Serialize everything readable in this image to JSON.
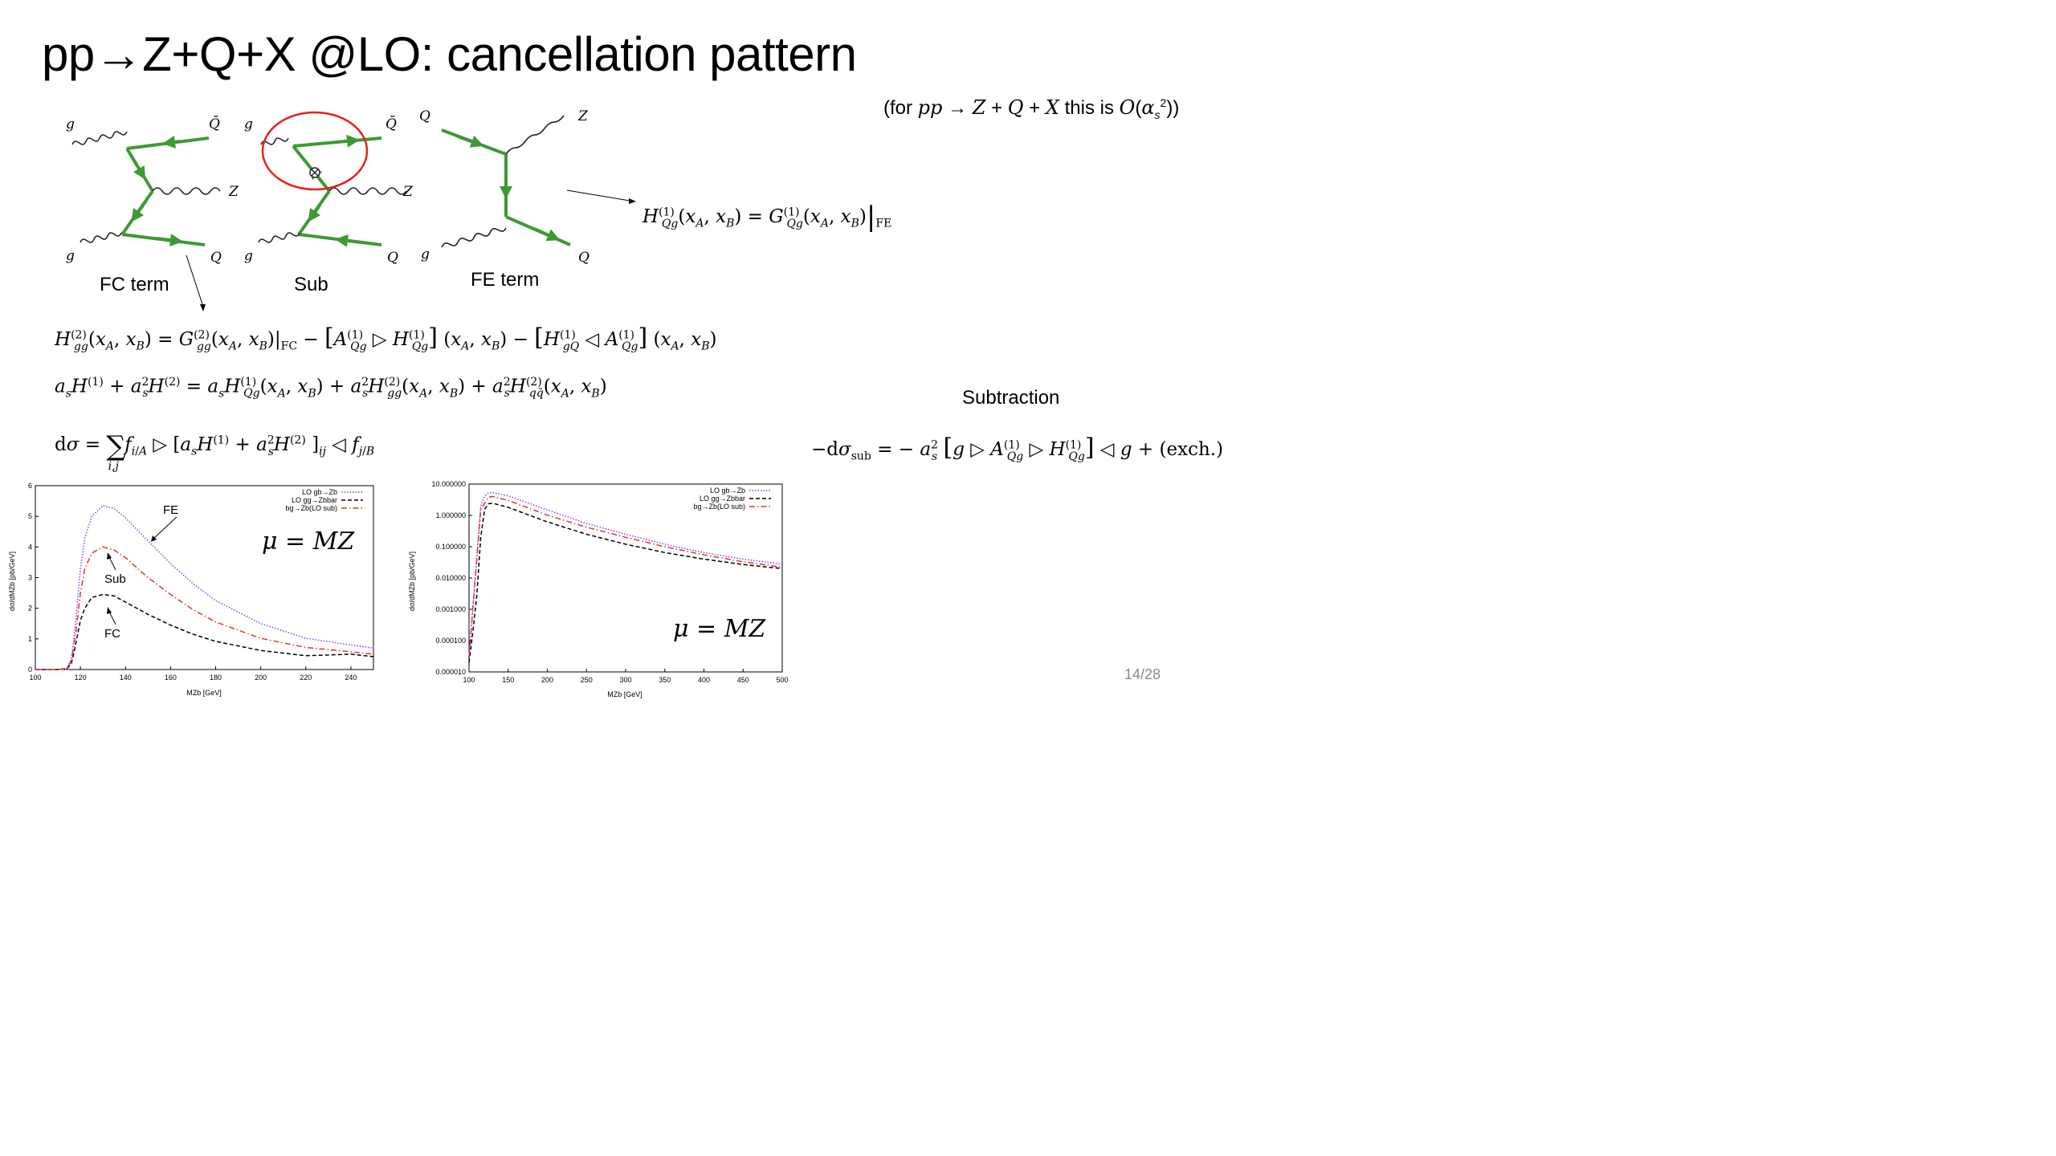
{
  "slide": {
    "title": "pp→Z+Q+X @LO: cancellation pattern",
    "note": "(for pp → Z + Q + X this is O(αs²))",
    "page_number": "14/28",
    "subtraction_label": "Subtraction"
  },
  "diagrams": {
    "fc": {
      "label": "FC term",
      "gluon_top": "g",
      "gluon_bottom": "g",
      "antiquark": "Q̄",
      "boson": "Z",
      "quark": "Q"
    },
    "sub": {
      "label": "Sub",
      "gluon_top": "g",
      "gluon_bottom": "g",
      "antiquark": "Q̄",
      "boson": "Z",
      "quark": "Q"
    },
    "fe": {
      "label": "FE term",
      "quark_in": "Q",
      "gluon_in": "g",
      "boson": "Z",
      "quark_out": "Q"
    }
  },
  "equations": {
    "fe_relation": "H⁽¹⁾Qg(xA, xB) = G⁽¹⁾Qg(xA, xB)|FE",
    "h2": "H⁽²⁾gg(xA, xB) = G⁽²⁾gg(xA, xB)|FC − [A⁽¹⁾Qg ▷ H⁽¹⁾Qg](xA, xB) − [H⁽¹⁾gQ ◁ A⁽¹⁾Qg](xA, xB)",
    "sum": "asH⁽¹⁾ + as²H⁽²⁾ = asH⁽¹⁾Qg(xA, xB) + as²H⁽²⁾gg(xA, xB) + as²H⁽²⁾qq̄(xA, xB)",
    "dsigma": "dσ = Σi,j fi/A ▷ [asH⁽¹⁾ + as²H⁽²⁾]ij ◁ fj/B",
    "subtraction": "−dσsub = − as² [g ▷ A⁽¹⁾Qg ▷ H⁽¹⁾Qg] ◁ g + (exch.)"
  },
  "chart_data": [
    {
      "type": "line",
      "xlabel": "MZb [GeV]",
      "ylabel": "dσ/dMZb [pb/GeV]",
      "xlim": [
        100,
        250
      ],
      "ylim": [
        0,
        6
      ],
      "xticks": [
        "100",
        "120",
        "140",
        "160",
        "180",
        "200",
        "220",
        "240"
      ],
      "yticks": [
        "0",
        "1",
        "2",
        "3",
        "4",
        "5",
        "6"
      ],
      "scale_label": "μ = MZ",
      "annotations": [
        "FE",
        "Sub",
        "FC"
      ],
      "legend_position": "top-right",
      "series": [
        {
          "name": "LO gb→Zb",
          "color": "#8a3dff",
          "style": "dotted",
          "x": [
            100,
            110,
            114,
            116,
            118,
            120,
            122,
            125,
            130,
            135,
            140,
            150,
            160,
            170,
            180,
            200,
            220,
            240,
            250
          ],
          "y": [
            0,
            0,
            0.05,
            0.35,
            1.6,
            3.3,
            4.3,
            5.0,
            5.35,
            5.25,
            4.95,
            4.2,
            3.45,
            2.8,
            2.25,
            1.5,
            1.02,
            0.8,
            0.7
          ]
        },
        {
          "name": "LO gg→Zbbar",
          "color": "#000000",
          "style": "dashed",
          "x": [
            100,
            110,
            114,
            116,
            118,
            120,
            122,
            125,
            130,
            135,
            140,
            150,
            160,
            170,
            180,
            200,
            220,
            240,
            250
          ],
          "y": [
            0,
            0,
            0.02,
            0.2,
            0.85,
            1.6,
            2.0,
            2.35,
            2.45,
            2.4,
            2.2,
            1.8,
            1.45,
            1.15,
            0.92,
            0.62,
            0.45,
            0.5,
            0.42
          ]
        },
        {
          "name": "bg→Zb(LO sub)",
          "color": "#e8302a",
          "style": "dashdot",
          "x": [
            100,
            110,
            114,
            116,
            118,
            120,
            122,
            125,
            130,
            135,
            140,
            150,
            160,
            170,
            180,
            200,
            220,
            240,
            250
          ],
          "y": [
            0,
            0,
            0.03,
            0.28,
            1.2,
            2.5,
            3.3,
            3.8,
            4.0,
            3.9,
            3.65,
            3.0,
            2.45,
            1.95,
            1.55,
            1.02,
            0.72,
            0.58,
            0.5
          ]
        }
      ]
    },
    {
      "type": "line",
      "xlabel": "MZb [GeV]",
      "ylabel": "dσ/dMZb [pb/GeV]",
      "yscale": "log",
      "xlim": [
        100,
        500
      ],
      "ylim": [
        1e-05,
        10
      ],
      "xticks": [
        "100",
        "150",
        "200",
        "250",
        "300",
        "350",
        "400",
        "450",
        "500"
      ],
      "yticks": [
        "10.000000",
        "1.000000",
        "0.100000",
        "0.010000",
        "0.001000",
        "0.000100",
        "0.000010"
      ],
      "scale_label": "μ = MZ",
      "legend_position": "top-right",
      "series": [
        {
          "name": "LO gb→Zb",
          "color": "#8a3dff",
          "style": "dotted",
          "x": [
            100,
            115,
            120,
            125,
            130,
            150,
            200,
            250,
            300,
            350,
            400,
            450,
            500
          ],
          "y": [
            3e-05,
            2.0,
            4.2,
            5.2,
            5.35,
            4.2,
            1.5,
            0.55,
            0.25,
            0.12,
            0.065,
            0.04,
            0.028
          ]
        },
        {
          "name": "LO gg→Zbbar",
          "color": "#000000",
          "style": "dashed",
          "x": [
            100,
            105,
            110,
            115,
            120,
            125,
            130,
            150,
            200,
            250,
            300,
            350,
            400,
            450,
            500
          ],
          "y": [
            2e-05,
            0.0002,
            0.003,
            0.2,
            1.6,
            2.35,
            2.45,
            1.8,
            0.62,
            0.25,
            0.12,
            0.065,
            0.04,
            0.027,
            0.02
          ]
        },
        {
          "name": "bg→Zb(LO sub)",
          "color": "#e8302a",
          "style": "dashdot",
          "x": [
            100,
            115,
            120,
            125,
            130,
            150,
            200,
            250,
            300,
            350,
            400,
            450,
            500
          ],
          "y": [
            3e-05,
            1.5,
            2.5,
            3.8,
            4.0,
            3.0,
            1.02,
            0.42,
            0.2,
            0.1,
            0.055,
            0.033,
            0.022
          ]
        }
      ]
    }
  ]
}
